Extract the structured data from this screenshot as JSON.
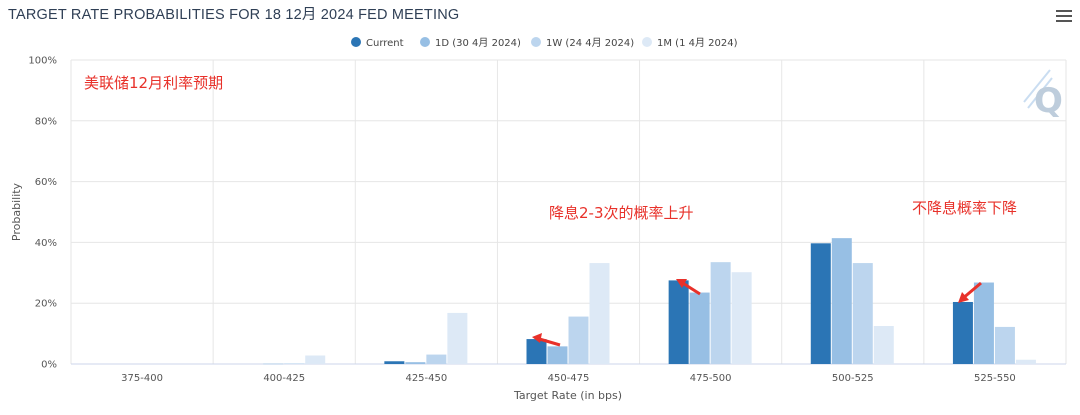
{
  "title": "TARGET RATE PROBABILITIES FOR 18 12月 2024 FED MEETING",
  "menu_icon": "hamburger-menu-icon",
  "colors": {
    "current": "#2b75b5",
    "d1": "#97bfe4",
    "w1": "#bcd5ee",
    "m1": "#dde9f6",
    "annotation": "#e8312a",
    "grid": "#e6e6e6"
  },
  "watermark_icon": "q-logo-icon",
  "annotations": {
    "cn_title": "美联储12月利率预期",
    "cut_text": "降息2-3次的概率上升",
    "nocut_text": "不降息概率下降"
  },
  "chart_data": {
    "type": "bar",
    "title": "TARGET RATE PROBABILITIES FOR 18 12月 2024 FED MEETING",
    "xlabel": "Target Rate (in bps)",
    "ylabel": "Probability",
    "ylim": [
      0,
      100
    ],
    "yticks": [
      "0%",
      "20%",
      "40%",
      "60%",
      "80%",
      "100%"
    ],
    "categories": [
      "375-400",
      "400-425",
      "425-450",
      "450-475",
      "475-500",
      "500-525",
      "525-550"
    ],
    "series": [
      {
        "name": "Current",
        "values": [
          0,
          0,
          0.9,
          8.2,
          27.5,
          39.7,
          20.4
        ]
      },
      {
        "name": "1D (30 4月 2024)",
        "values": [
          0,
          0.1,
          0.6,
          5.8,
          23.5,
          41.4,
          26.8
        ]
      },
      {
        "name": "1W (24 4月 2024)",
        "values": [
          0,
          0.2,
          3.1,
          15.6,
          33.5,
          33.2,
          12.2
        ]
      },
      {
        "name": "1M (1 4月 2024)",
        "values": [
          0,
          2.8,
          16.8,
          33.2,
          30.2,
          12.5,
          1.4
        ]
      }
    ],
    "legend_position": "top-center",
    "grid": true
  }
}
